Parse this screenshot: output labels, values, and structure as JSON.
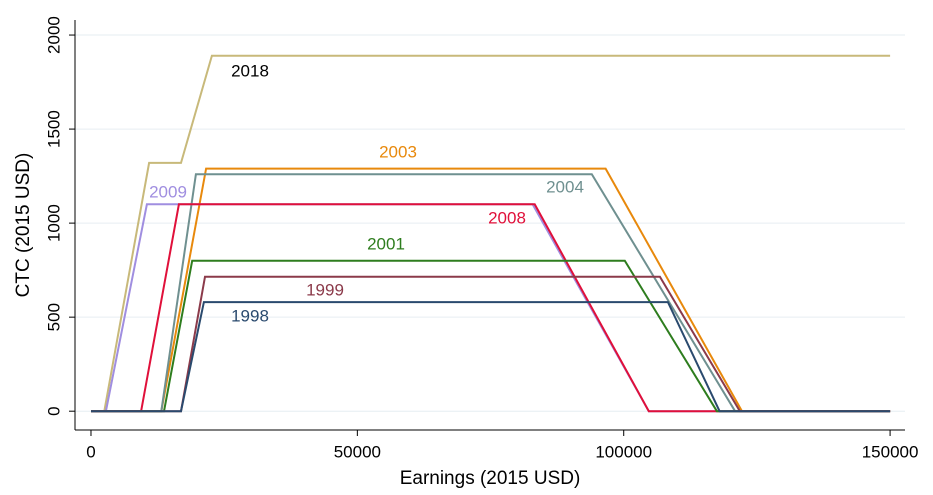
{
  "chart_data": {
    "type": "line",
    "x_label": "Earnings (2015 USD)",
    "y_label": "CTC (2015 USD)",
    "xlim": [
      -3000,
      152800
    ],
    "ylim": [
      -100,
      2080
    ],
    "xticks": [
      0,
      50000,
      100000,
      150000
    ],
    "yticks": [
      0,
      500,
      1000,
      1500,
      2000
    ],
    "grid": true,
    "series": [
      {
        "name": "2018",
        "color": "#c8b97a",
        "x": [
          0,
          2500,
          10900,
          16900,
          22700,
          150000
        ],
        "values": [
          0,
          0,
          1320,
          1320,
          1890,
          1890
        ]
      },
      {
        "name": "2003",
        "color": "#e8890c",
        "x": [
          0,
          13200,
          21600,
          96600,
          122200,
          150000
        ],
        "values": [
          0,
          0,
          1290,
          1290,
          0,
          0
        ]
      },
      {
        "name": "2004",
        "color": "#6f9090",
        "x": [
          0,
          13200,
          19700,
          94000,
          120900,
          150000
        ],
        "values": [
          0,
          0,
          1260,
          1260,
          0,
          0
        ]
      },
      {
        "name": "2009",
        "color": "#a08ee0",
        "x": [
          0,
          2800,
          10500,
          82900,
          104700,
          150000
        ],
        "values": [
          0,
          0,
          1100,
          1100,
          0,
          0
        ]
      },
      {
        "name": "2008",
        "color": "#e0103a",
        "x": [
          0,
          9400,
          16500,
          83300,
          104700,
          150000
        ],
        "values": [
          0,
          0,
          1100,
          1100,
          0,
          0
        ]
      },
      {
        "name": "2001",
        "color": "#2e7d1e",
        "x": [
          0,
          13700,
          19000,
          100200,
          117500,
          150000
        ],
        "values": [
          0,
          0,
          800,
          800,
          0,
          0
        ]
      },
      {
        "name": "1999",
        "color": "#8b3a4a",
        "x": [
          0,
          16900,
          21400,
          106800,
          121800,
          150000
        ],
        "values": [
          0,
          0,
          715,
          715,
          0,
          0
        ]
      },
      {
        "name": "1998",
        "color": "#2a4a6e",
        "x": [
          0,
          16900,
          21200,
          108300,
          118000,
          150000
        ],
        "values": [
          0,
          0,
          580,
          580,
          0,
          0
        ]
      }
    ]
  }
}
